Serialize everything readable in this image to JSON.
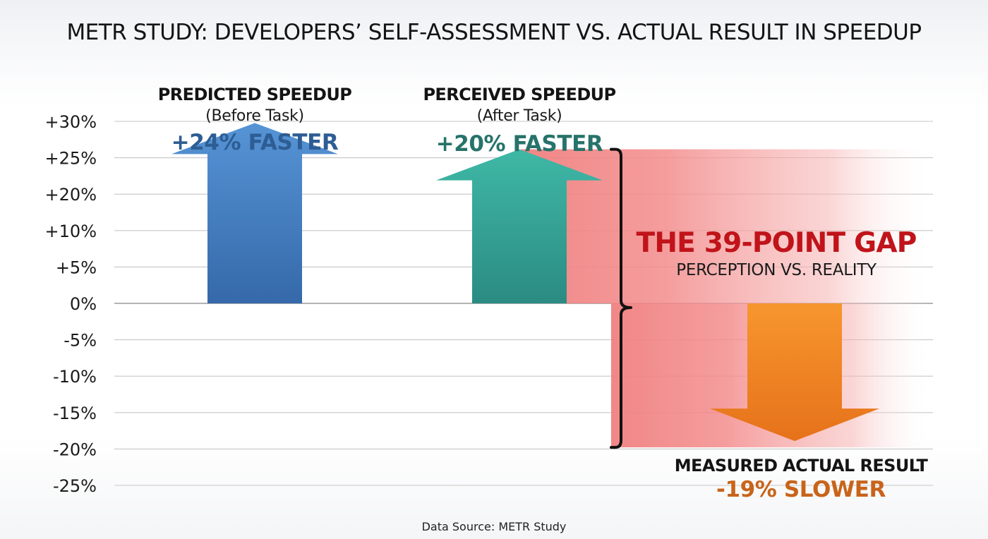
{
  "title": "METR STUDY: DEVELOPERS’ SELF-ASSESSMENT VS. ACTUAL RESULT IN SPEEDUP",
  "source": "Data Source: METR Study",
  "chart_data": {
    "type": "bar",
    "title": "METR STUDY: DEVELOPERS’ SELF-ASSESSMENT VS. ACTUAL RESULT IN SPEEDUP",
    "y_ticks": [
      "+30%",
      "+25%",
      "+20%",
      "+10%",
      "+5%",
      "0%",
      "-5%",
      "-10%",
      "-15%",
      "-20%",
      "-25%"
    ],
    "ylim": [
      -25,
      30
    ],
    "grid": true,
    "legend": "none",
    "bars": [
      {
        "key": "predicted",
        "label": "PREDICTED SPEEDUP",
        "sublabel": "(Before Task)",
        "value_label": "+24% FASTER",
        "value": 24,
        "direction": "up",
        "color": "#3f7fc4",
        "label_color": "#2d5d93"
      },
      {
        "key": "perceived",
        "label": "PERCEIVED SPEEDUP",
        "sublabel": "(After Task)",
        "value_label": "+20% FASTER",
        "value": 20,
        "direction": "up",
        "color": "#32a597",
        "label_color": "#26736a"
      },
      {
        "key": "measured",
        "label": "MEASURED ACTUAL RESULT",
        "sublabel": "",
        "value_label": "-19% SLOWER",
        "value": -19,
        "direction": "down",
        "color": "#f28a22",
        "label_color": "#c8641a"
      }
    ],
    "gap": {
      "title": "THE 39-POINT GAP",
      "subtitle": "PERCEPTION VS. REALITY",
      "points": 39,
      "color": "#f08080"
    }
  }
}
